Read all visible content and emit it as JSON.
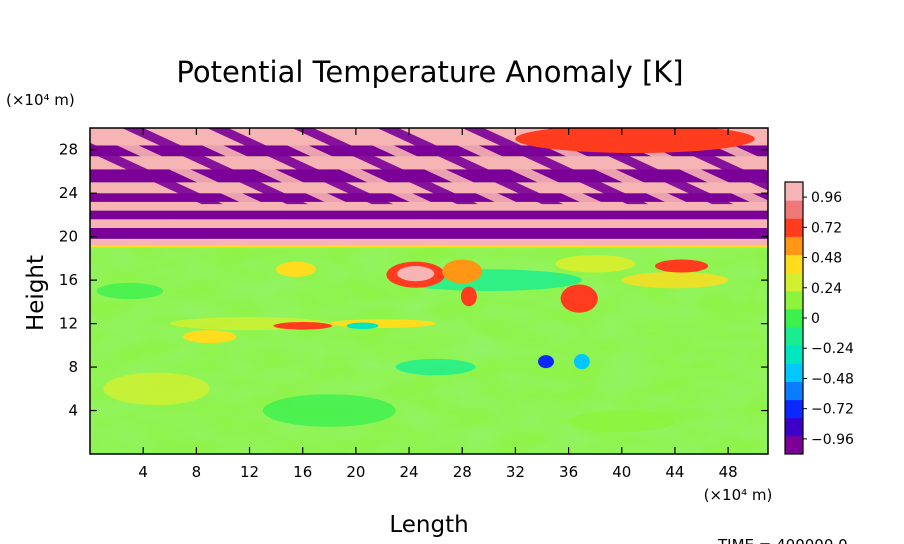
{
  "chart_data": {
    "type": "heatmap",
    "title": "Potential Temperature Anomaly [K]",
    "xlabel": "Length",
    "ylabel": "Height",
    "x_unit": "(×10⁴ m)",
    "y_unit": "(×10⁴ m)",
    "xlim": [
      0,
      51
    ],
    "ylim": [
      0,
      30
    ],
    "x_ticks": [
      4,
      8,
      12,
      16,
      20,
      24,
      28,
      32,
      36,
      40,
      44,
      48
    ],
    "y_ticks": [
      4,
      8,
      12,
      16,
      20,
      24,
      28
    ],
    "colorbar": {
      "min": -1.08,
      "max": 1.08,
      "ticks": [
        0.96,
        0.72,
        0.48,
        0.24,
        0,
        -0.24,
        -0.48,
        -0.72,
        -0.96
      ],
      "tick_labels": [
        "0.96",
        "0.72",
        "0.48",
        "0.24",
        "0",
        "−0.24",
        "−0.48",
        "−0.72",
        "−0.96"
      ]
    },
    "field_description": [
      {
        "height_range": [
          0,
          19
        ],
        "values": "mostly near 0 to 0.24 (green), with localized warm anomalies up to ~0.96 near x=22-28, y=15-18 and x=36-38, y=13-15, and cool anomalies near -0.72 around x=34-36, y=8-10"
      },
      {
        "height_range": [
          19,
          30
        ],
        "values": "alternating horizontal bands of approximately +0.96 and -0.96 with tilted wave structures at upper left"
      }
    ],
    "footer": "TIME = 400000.0"
  }
}
